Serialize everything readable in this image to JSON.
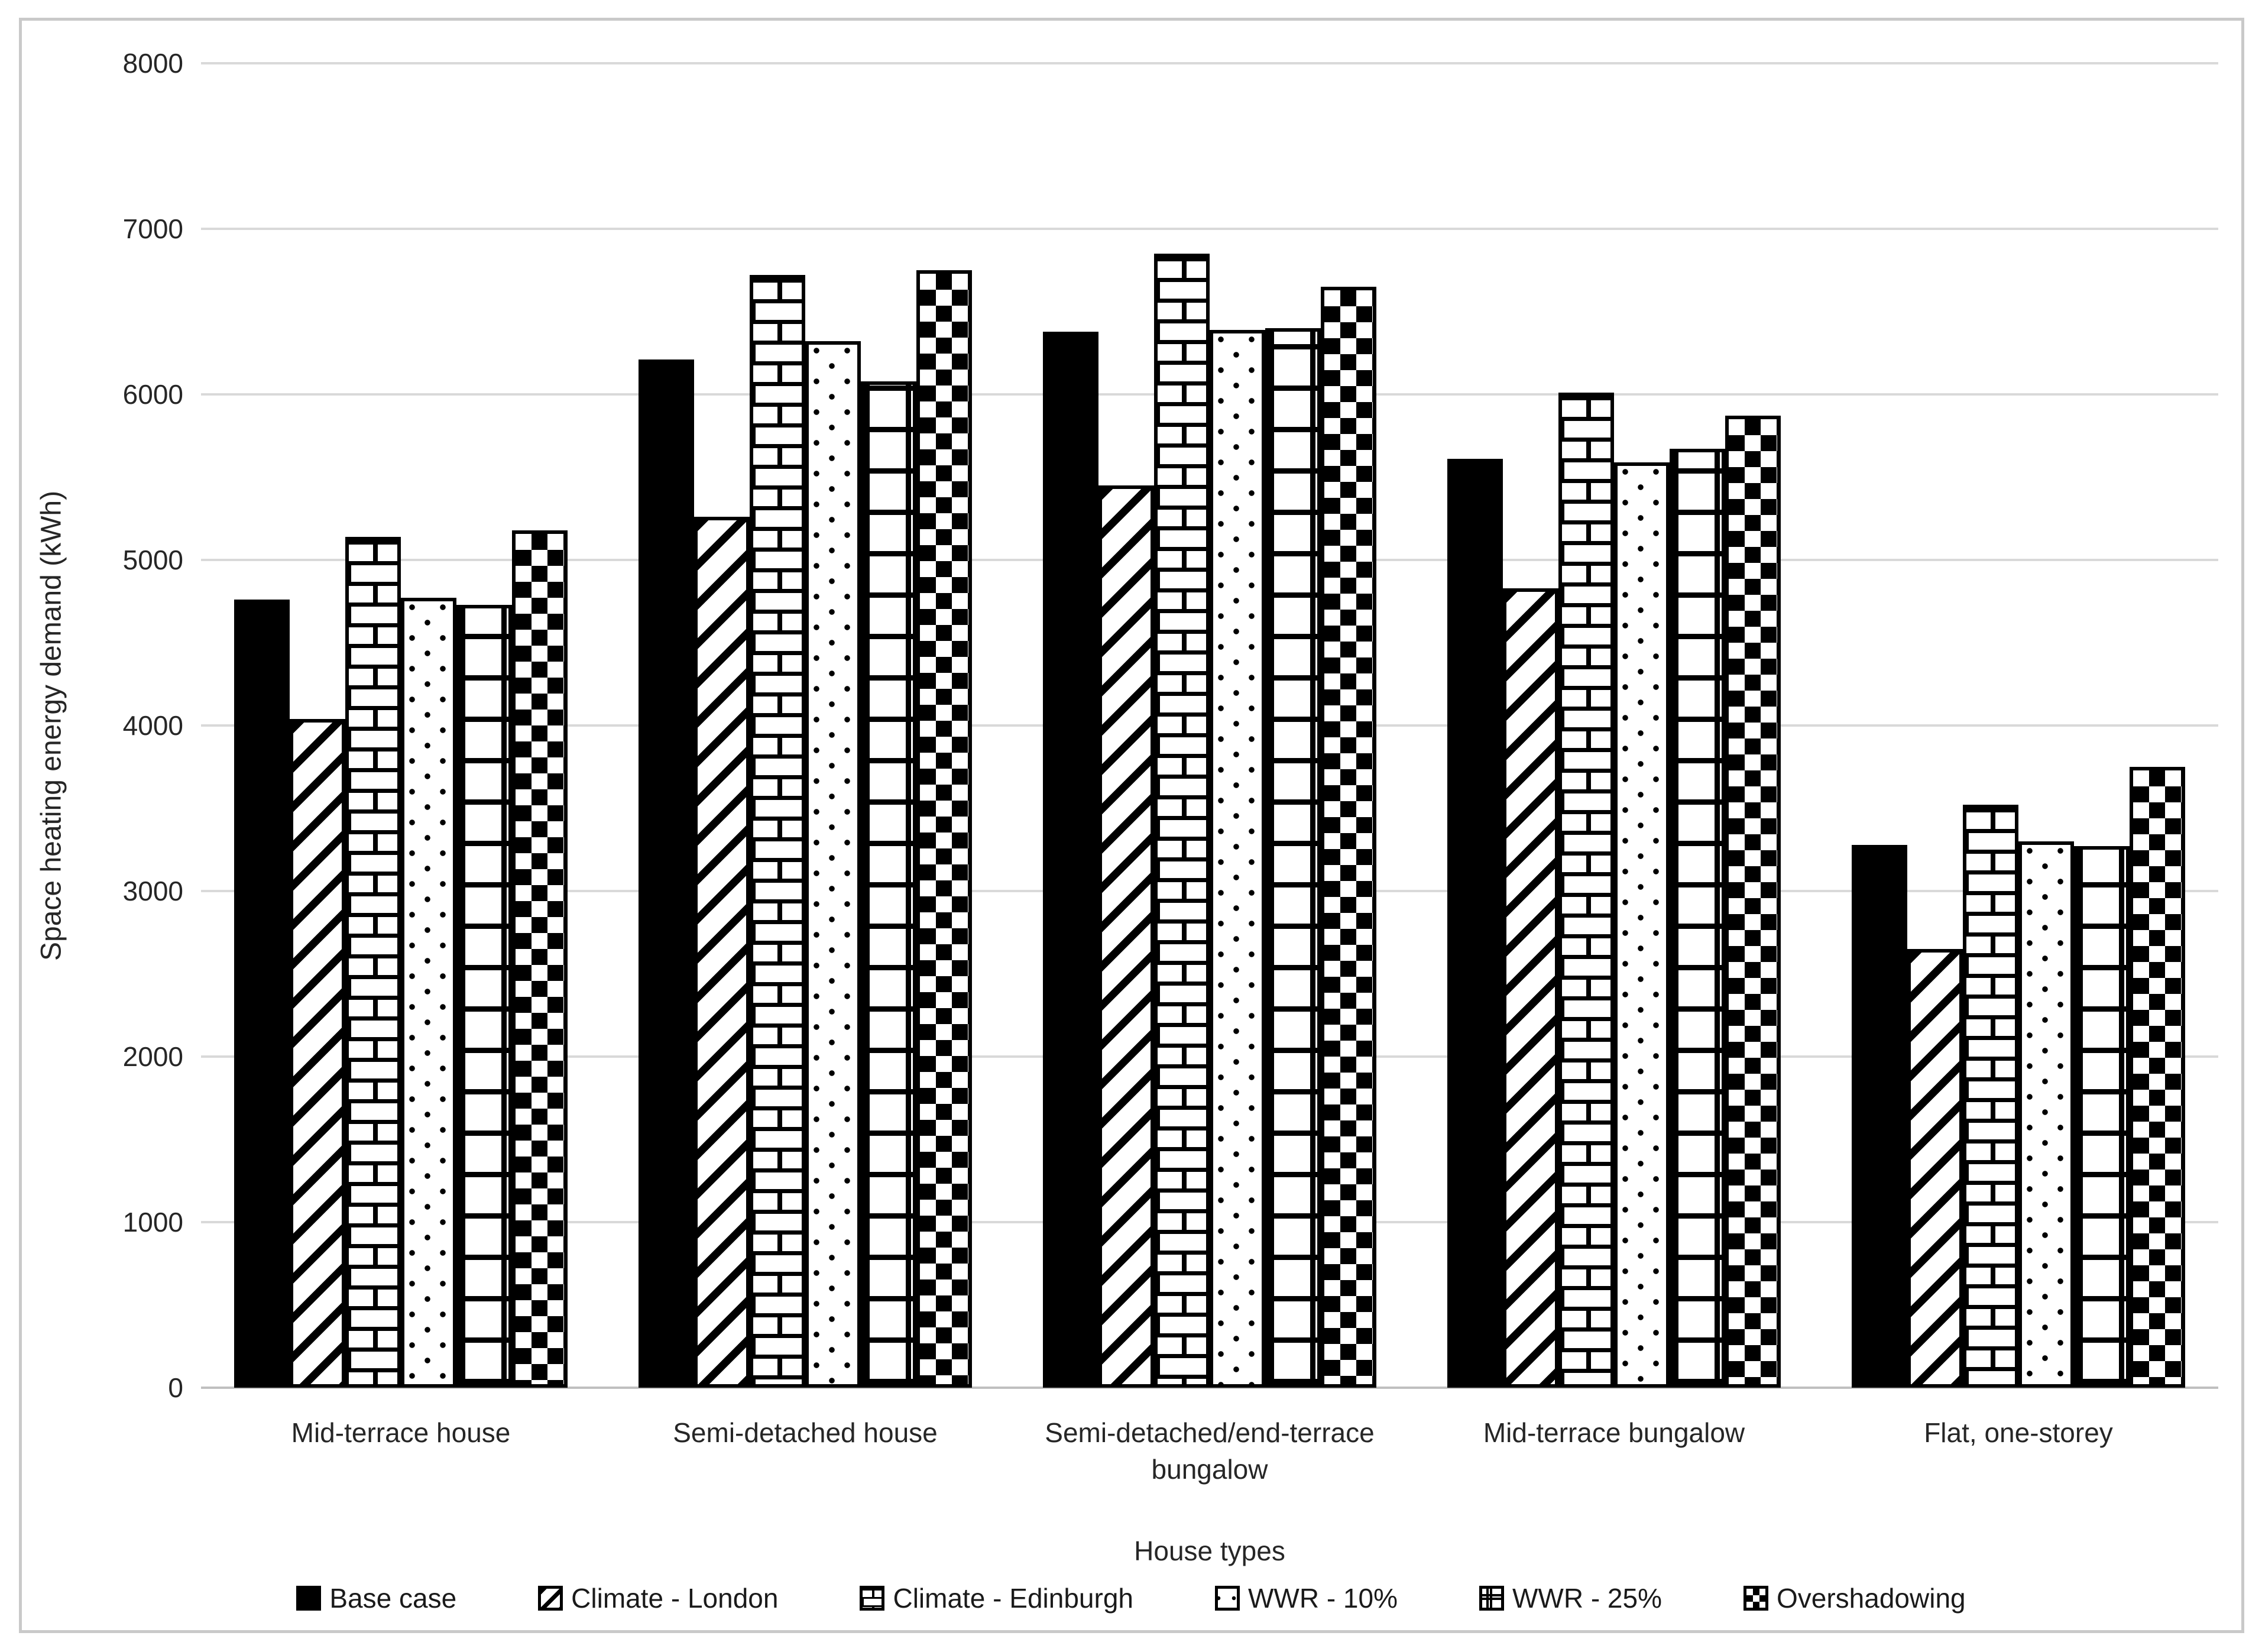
{
  "chart_data": {
    "type": "bar",
    "title": "",
    "xlabel": "House types",
    "ylabel": "Space heating energy demand (kWh)",
    "ylim": [
      0,
      8000
    ],
    "yticks": [
      0,
      1000,
      2000,
      3000,
      4000,
      5000,
      6000,
      7000,
      8000
    ],
    "grid": true,
    "legend_position": "bottom",
    "categories": [
      "Mid-terrace house",
      "Semi-detached house",
      "Semi-detached/end-terrace bungalow",
      "Mid-terrace bungalow",
      "Flat, one-storey"
    ],
    "series": [
      {
        "name": "Base case",
        "pattern": "solid-black",
        "values": [
          4760,
          6210,
          6380,
          5610,
          3280
        ]
      },
      {
        "name": "Climate - London",
        "pattern": "diagonal-stripes",
        "values": [
          4040,
          5260,
          5450,
          4830,
          2650
        ]
      },
      {
        "name": "Climate - Edinburgh",
        "pattern": "brick",
        "values": [
          5140,
          6720,
          6850,
          6010,
          3520
        ]
      },
      {
        "name": "WWR - 10%",
        "pattern": "dots",
        "values": [
          4770,
          6320,
          6390,
          5590,
          3300
        ]
      },
      {
        "name": "WWR - 25%",
        "pattern": "grid-tiles",
        "values": [
          4730,
          6080,
          6400,
          5670,
          3270
        ]
      },
      {
        "name": "Overshadowing",
        "pattern": "checkerboard",
        "values": [
          5180,
          6750,
          6650,
          5870,
          3750
        ]
      }
    ],
    "colors": {
      "bar_ink": "#000000",
      "gridline": "#d9d9d9",
      "zero_line": "#bfbfbf",
      "text": "#262626",
      "frame_border": "#c9c9c9"
    }
  }
}
